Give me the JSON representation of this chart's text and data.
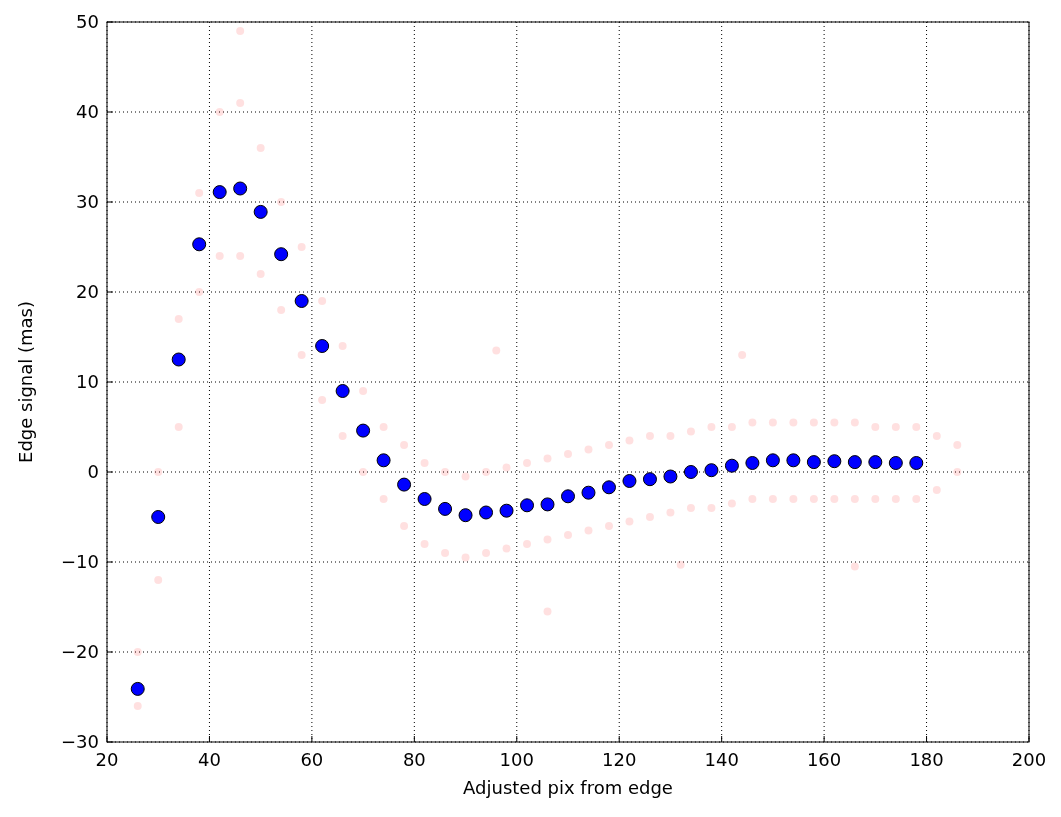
{
  "chart_data": {
    "type": "scatter",
    "xlabel": "Adjusted pix from edge",
    "ylabel": "Edge signal (mas)",
    "xlim": [
      20,
      200
    ],
    "ylim": [
      -30,
      50
    ],
    "xticks": [
      20,
      40,
      60,
      80,
      100,
      120,
      140,
      160,
      180,
      200
    ],
    "yticks": [
      -30,
      -20,
      -10,
      0,
      10,
      20,
      30,
      40,
      50
    ],
    "grid": true,
    "marker": "circle",
    "series": [
      {
        "color": "#ff0000",
        "x": [
          26,
          30,
          34,
          38,
          42,
          46,
          50,
          54,
          58,
          62,
          66,
          70,
          74,
          78,
          82,
          86,
          90,
          94,
          98,
          102,
          106,
          110,
          114,
          118,
          122,
          126,
          130,
          134,
          138,
          142,
          146,
          150,
          154,
          158,
          162,
          166,
          170,
          174,
          178,
          182,
          186,
          26,
          30,
          34,
          38,
          42,
          46,
          50,
          54,
          58,
          62,
          66,
          70,
          74,
          78,
          82,
          86,
          90,
          94,
          98,
          102,
          106,
          110,
          114,
          118,
          122,
          126,
          130,
          134,
          138,
          142,
          146,
          150,
          154,
          158,
          162,
          166,
          170,
          174,
          178,
          182,
          186,
          46,
          96,
          106,
          166,
          132,
          144
        ],
        "values": [
          -20,
          0,
          17,
          31,
          40,
          41,
          36,
          30,
          25,
          19,
          14,
          9,
          5,
          3,
          1,
          0,
          -0.5,
          0,
          0.5,
          1,
          1.5,
          2,
          2.5,
          3,
          3.5,
          4,
          4,
          4.5,
          5,
          5,
          5.5,
          5.5,
          5.5,
          5.5,
          5.5,
          5.5,
          5,
          5,
          5,
          4,
          3,
          -26,
          -12,
          5,
          20,
          24,
          24,
          22,
          18,
          13,
          8,
          4,
          0,
          -3,
          -6,
          -8,
          -9,
          -9.5,
          -9,
          -8.5,
          -8,
          -7.5,
          -7,
          -6.5,
          -6,
          -5.5,
          -5,
          -4.5,
          -4,
          -4,
          -3.5,
          -3,
          -3,
          -3,
          -3,
          -3,
          -3,
          -3,
          -3,
          -3,
          -2,
          0,
          49,
          13.5,
          -15.5,
          -10.5,
          -10.3,
          13
        ]
      },
      {
        "color": "#0000ff",
        "x": [
          26,
          30,
          34,
          38,
          42,
          46,
          50,
          54,
          58,
          62,
          66,
          70,
          74,
          78,
          82,
          86,
          90,
          94,
          98,
          102,
          106,
          110,
          114,
          118,
          122,
          126,
          130,
          134,
          138,
          142,
          146,
          150,
          154,
          158,
          162,
          166,
          170,
          174,
          178
        ],
        "values": [
          -24.1,
          -5,
          12.5,
          25.3,
          31.1,
          31.5,
          28.9,
          24.2,
          19,
          14,
          9,
          4.6,
          1.3,
          -1.4,
          -3,
          -4.1,
          -4.8,
          -4.5,
          -4.3,
          -3.7,
          -3.6,
          -2.7,
          -2.3,
          -1.7,
          -1,
          -0.8,
          -0.5,
          0,
          0.2,
          0.7,
          1,
          1.3,
          1.3,
          1.1,
          1.2,
          1.1,
          1.1,
          1,
          1
        ]
      }
    ]
  }
}
